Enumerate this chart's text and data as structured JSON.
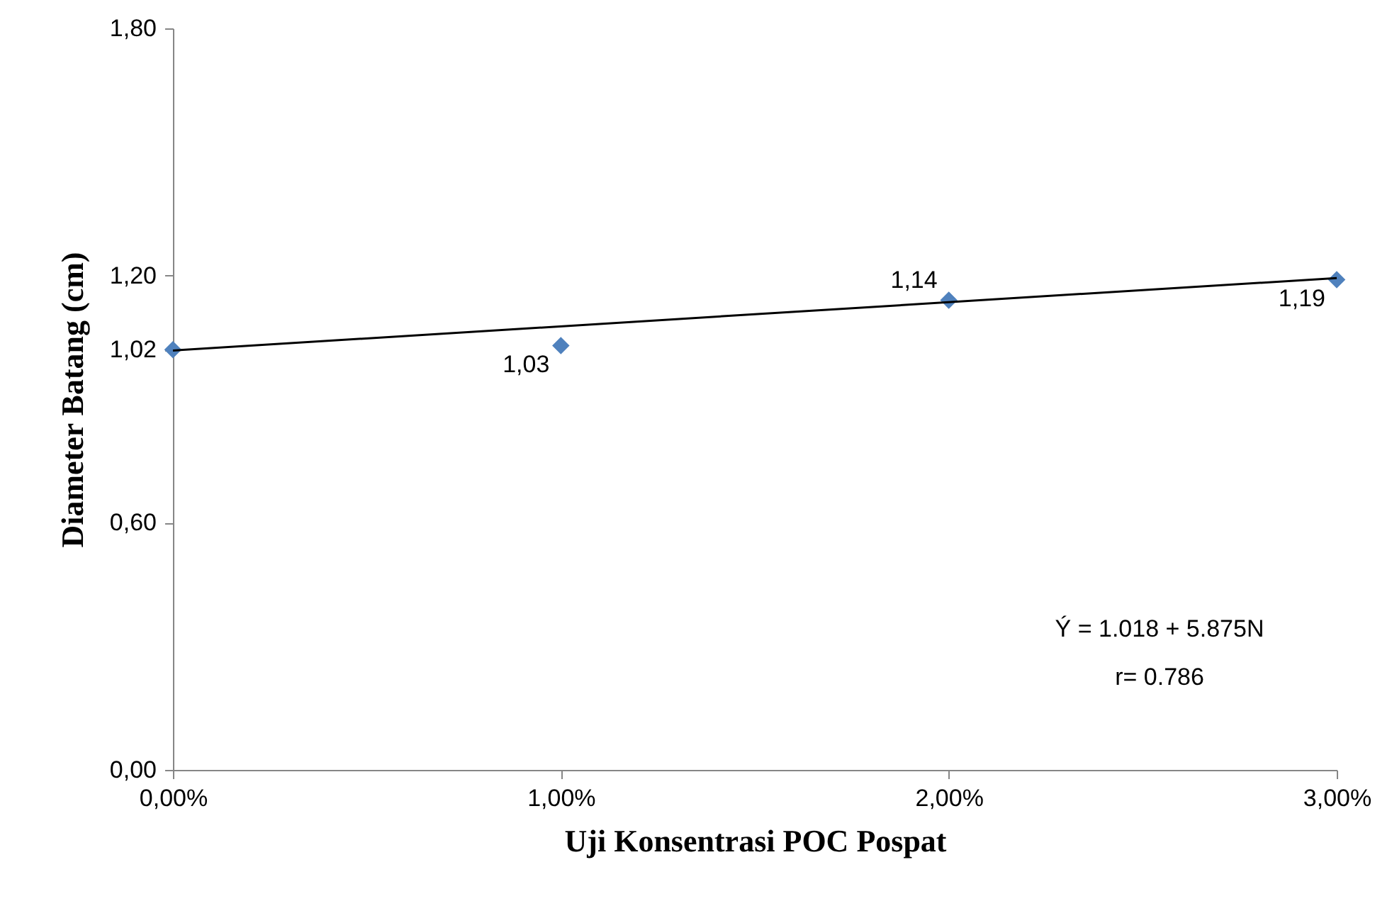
{
  "chart_data": {
    "type": "scatter",
    "xlabel": "Uji Konsentrasi POC Pospat",
    "ylabel": "Diameter Batang (cm)",
    "x": [
      0,
      1,
      2,
      3
    ],
    "xlim": [
      0,
      3
    ],
    "xticks": [
      {
        "value": 0,
        "label": "0,00%"
      },
      {
        "value": 1,
        "label": "1,00%"
      },
      {
        "value": 2,
        "label": "2,00%"
      },
      {
        "value": 3,
        "label": "3,00%"
      }
    ],
    "ylim": [
      0,
      1.8
    ],
    "yticks": [
      {
        "value": 0,
        "label": "0,00"
      },
      {
        "value": 0.6,
        "label": "0,60"
      },
      {
        "value": 1.02,
        "label": "1,02"
      },
      {
        "value": 1.2,
        "label": "1,20"
      },
      {
        "value": 1.8,
        "label": "1,80"
      }
    ],
    "grid": false,
    "series": [
      {
        "type": "scatter",
        "color": "#4f81bd",
        "marker": "diamond",
        "values": [
          1.02,
          1.03,
          1.14,
          1.19
        ],
        "value_labels": [
          null,
          "1,03",
          "1,14",
          "1,19"
        ]
      },
      {
        "type": "line",
        "color": "#000000",
        "marker": "none",
        "line_style": "solid",
        "x": [
          0,
          3
        ],
        "values": [
          1.018,
          1.194
        ]
      }
    ],
    "annotations": [
      "Ý = 1.018 + 5.875N",
      "r= 0.786"
    ]
  }
}
